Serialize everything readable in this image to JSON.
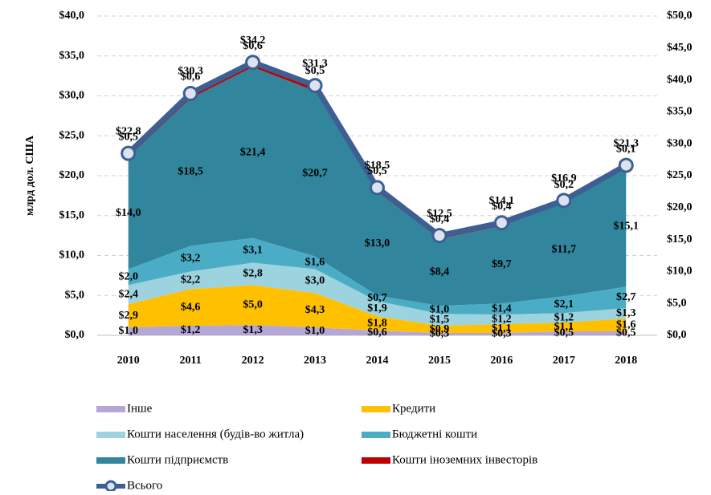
{
  "chart_data": {
    "type": "stacked_area_line",
    "y_axis_label": "млрд дол. США",
    "categories": [
      "2010",
      "2011",
      "2012",
      "2013",
      "2014",
      "2015",
      "2016",
      "2017",
      "2018"
    ],
    "series": [
      {
        "name": "Інше",
        "color": "#b4a7d6",
        "values": [
          1.0,
          1.2,
          1.3,
          1.0,
          0.6,
          0.3,
          0.3,
          0.5,
          0.5
        ],
        "value_labels": [
          "$1,0",
          "$1,2",
          "$1,3",
          "$1,0",
          "$0,6",
          "$0,3",
          "$0,3",
          "$0,5",
          "$0,5"
        ]
      },
      {
        "name": "Кредити",
        "color": "#ffc000",
        "values": [
          2.9,
          4.6,
          5.0,
          4.3,
          1.8,
          0.9,
          1.1,
          1.1,
          1.6
        ],
        "value_labels": [
          "$2,9",
          "$4,6",
          "$5,0",
          "$4,3",
          "$1,8",
          "$0,9",
          "$1,1",
          "$1,1",
          "$1,6"
        ]
      },
      {
        "name": "Кошти населення (будів-во житла)",
        "color": "#9dd3df",
        "values": [
          2.4,
          2.2,
          2.8,
          3.0,
          1.9,
          1.5,
          1.2,
          1.2,
          1.3
        ],
        "value_labels": [
          "$2,4",
          "$2,2",
          "$2,8",
          "$3,0",
          "$1,9",
          "$1,5",
          "$1,2",
          "$1,2",
          "$1,3"
        ]
      },
      {
        "name": "Бюджетні кошти",
        "color": "#4bacc6",
        "values": [
          2.0,
          3.2,
          3.1,
          1.6,
          0.7,
          1.0,
          1.4,
          2.1,
          2.7
        ],
        "value_labels": [
          "$2,0",
          "$3,2",
          "$3,1",
          "$1,6",
          "$0,7",
          "$1,0",
          "$1,4",
          "$2,1",
          "$2,7"
        ]
      },
      {
        "name": "Кошти підприємств",
        "color": "#31859c",
        "values": [
          14.0,
          18.5,
          21.4,
          20.7,
          13.0,
          8.4,
          9.7,
          11.7,
          15.1
        ],
        "value_labels": [
          "$14,0",
          "$18,5",
          "$21,4",
          "$20,7",
          "$13,0",
          "$8,4",
          "$9,7",
          "$11,7",
          "$15,1"
        ]
      },
      {
        "name": "Кошти іноземних інвесторів",
        "color": "#c00000",
        "values": [
          0.5,
          0.6,
          0.6,
          0.5,
          0.5,
          0.4,
          0.4,
          0.2,
          0.1
        ],
        "value_labels": [
          "$0,5",
          "$0,6",
          "$0,6",
          "$0,5",
          "$0,5",
          "$0,4",
          "$0,4",
          "$0,2",
          "$0,1"
        ]
      },
      {
        "name": "Всього",
        "color": "#3d5f94",
        "line": true,
        "values": [
          22.8,
          30.3,
          34.2,
          31.3,
          18.5,
          12.5,
          14.1,
          16.9,
          21.3
        ],
        "value_labels": [
          "$22,8",
          "$30,3",
          "$34,2",
          "$31,3",
          "$18,5",
          "$12,5",
          "$14,1",
          "$16,9",
          "$21,3"
        ]
      }
    ],
    "ylim": [
      0,
      40
    ],
    "yticks": [
      {
        "value": 0,
        "label": "$0,0"
      },
      {
        "value": 5,
        "label": "$5,0"
      },
      {
        "value": 10,
        "label": "$10,0"
      },
      {
        "value": 15,
        "label": "$15,0"
      },
      {
        "value": 20,
        "label": "$20,0"
      },
      {
        "value": 25,
        "label": "$25,0"
      },
      {
        "value": 30,
        "label": "$30,0"
      },
      {
        "value": 35,
        "label": "$35,0"
      },
      {
        "value": 40,
        "label": "$40,0"
      }
    ],
    "y2lim": [
      0,
      50
    ],
    "y2ticks": [
      {
        "value": 0,
        "label": "$0,0"
      },
      {
        "value": 5,
        "label": "$5,0"
      },
      {
        "value": 10,
        "label": "$10,0"
      },
      {
        "value": 15,
        "label": "$15,0"
      },
      {
        "value": 20,
        "label": "$20,0"
      },
      {
        "value": 25,
        "label": "$25,0"
      },
      {
        "value": 30,
        "label": "$30,0"
      },
      {
        "value": 35,
        "label": "$35,0"
      },
      {
        "value": 40,
        "label": "$40,0"
      },
      {
        "value": 45,
        "label": "$45,0"
      },
      {
        "value": 50,
        "label": "$50,0"
      }
    ],
    "grid": true
  }
}
